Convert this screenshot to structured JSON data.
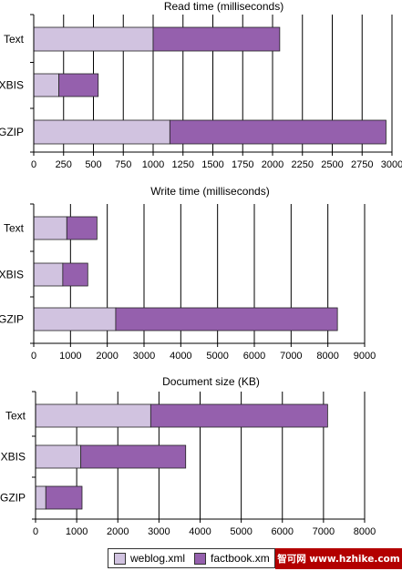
{
  "colors": {
    "weblog": "#d1c3e0",
    "factbook": "#9560ad",
    "axis": "#000000",
    "grid": "#000000"
  },
  "legend": {
    "weblog_label": "weblog.xml",
    "factbook_label": "factbook.xm"
  },
  "watermark": {
    "text": "智可网 www.hzhike.com"
  },
  "chart_data": [
    {
      "type": "bar",
      "orientation": "horizontal",
      "stacked": true,
      "title": "Read time (milliseconds)",
      "categories": [
        "Text",
        "XBIS",
        "GZIP"
      ],
      "series": [
        {
          "name": "weblog.xml",
          "values": [
            1000,
            210,
            1140
          ]
        },
        {
          "name": "factbook.xm",
          "values": [
            1060,
            330,
            1810
          ]
        }
      ],
      "xlim": [
        0,
        3000
      ],
      "ticks": [
        0,
        250,
        500,
        750,
        1000,
        1250,
        1500,
        1750,
        2000,
        2250,
        2500,
        2750,
        3000
      ],
      "grid": true
    },
    {
      "type": "bar",
      "orientation": "horizontal",
      "stacked": true,
      "title": "Write time (milliseconds)",
      "categories": [
        "Text",
        "XBIS",
        "GZIP"
      ],
      "series": [
        {
          "name": "weblog.xml",
          "values": [
            900,
            790,
            2230
          ]
        },
        {
          "name": "factbook.xm",
          "values": [
            820,
            680,
            6030
          ]
        }
      ],
      "xlim": [
        0,
        9000
      ],
      "ticks": [
        0,
        1000,
        2000,
        3000,
        4000,
        5000,
        6000,
        7000,
        8000,
        9000
      ],
      "grid": true
    },
    {
      "type": "bar",
      "orientation": "horizontal",
      "stacked": true,
      "title": "Document size (KB)",
      "categories": [
        "Text",
        "XBIS",
        "GZIP"
      ],
      "series": [
        {
          "name": "weblog.xml",
          "values": [
            2800,
            1100,
            250
          ]
        },
        {
          "name": "factbook.xm",
          "values": [
            4300,
            2550,
            880
          ]
        }
      ],
      "xlim": [
        0,
        8000
      ],
      "ticks": [
        0,
        1000,
        2000,
        3000,
        4000,
        5000,
        6000,
        7000,
        8000
      ],
      "grid": true
    }
  ]
}
